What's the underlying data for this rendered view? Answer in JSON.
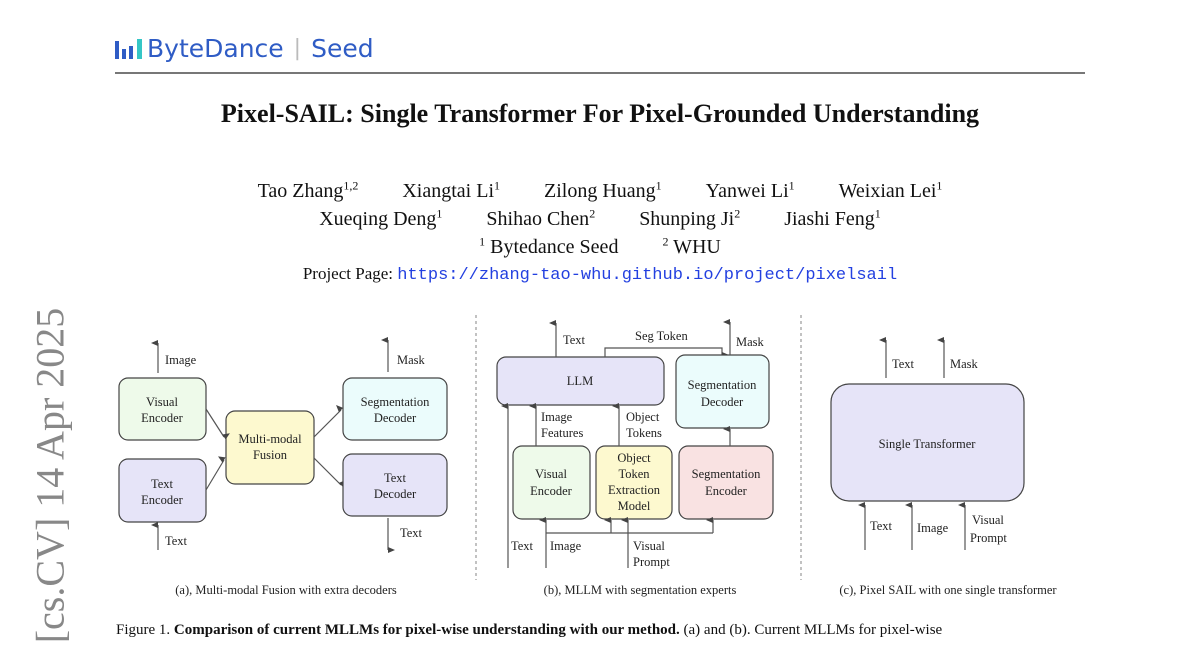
{
  "logo": {
    "brand": "ByteDance",
    "product": "Seed",
    "color": "#2f5cc5"
  },
  "title": "Pixel-SAIL: Single Transformer For Pixel-Grounded Understanding",
  "authors_line1": [
    {
      "name": "Tao Zhang",
      "aff": "1,2"
    },
    {
      "name": "Xiangtai Li",
      "aff": "1"
    },
    {
      "name": "Zilong Huang",
      "aff": "1"
    },
    {
      "name": "Yanwei Li",
      "aff": "1"
    },
    {
      "name": "Weixian Lei",
      "aff": "1"
    }
  ],
  "authors_line2": [
    {
      "name": "Xueqing Deng",
      "aff": "1"
    },
    {
      "name": "Shihao Chen",
      "aff": "2"
    },
    {
      "name": "Shunping Ji",
      "aff": "2"
    },
    {
      "name": "Jiashi Feng",
      "aff": "1"
    }
  ],
  "affiliations": [
    {
      "num": "1",
      "name": "Bytedance Seed"
    },
    {
      "num": "2",
      "name": "WHU"
    }
  ],
  "project": {
    "label": "Project Page:",
    "url": "https://zhang-tao-whu.github.io/project/pixelsail"
  },
  "arxiv_stamp": "[cs.CV]  14 Apr 2025",
  "figure": {
    "a": {
      "image": "Image",
      "visual_encoder": [
        "Visual",
        "Encoder"
      ],
      "text_encoder": [
        "Text",
        "Encoder"
      ],
      "fusion": [
        "Multi-modal",
        "Fusion"
      ],
      "seg_decoder": [
        "Segmentation",
        "Decoder"
      ],
      "text_decoder": [
        "Text",
        "Decoder"
      ],
      "mask": "Mask",
      "text_out": "Text",
      "text_in": "Text",
      "caption": "(a), Multi-modal Fusion with extra decoders"
    },
    "b": {
      "llm": "LLM",
      "text_out": "Text",
      "seg_token": "Seg Token",
      "mask": "Mask",
      "seg_decoder": [
        "Segmentation",
        "Decoder"
      ],
      "image_features": [
        "Image",
        "Features"
      ],
      "object_tokens": [
        "Object",
        "Tokens"
      ],
      "visual_encoder": [
        "Visual",
        "Encoder"
      ],
      "otem": [
        "Object",
        "Token",
        "Extraction",
        "Model"
      ],
      "seg_encoder": [
        "Segmentation",
        "Encoder"
      ],
      "text_in": "Text",
      "image_in": "Image",
      "visual_prompt": [
        "Visual",
        "Prompt"
      ],
      "caption": "(b), MLLM with segmentation experts"
    },
    "c": {
      "text_out": "Text",
      "mask": "Mask",
      "box": "Single Transformer",
      "text_in": "Text",
      "image_in": "Image",
      "visual_prompt": [
        "Visual",
        "Prompt"
      ],
      "caption": "(c), Pixel SAIL with one single transformer"
    },
    "colors": {
      "lavender": "#e6e4f8",
      "green": "#eefaea",
      "yellow": "#fdf9cf",
      "cyan": "#ebfcfc",
      "pink": "#f9e2e2"
    }
  },
  "caption": {
    "label": "Figure 1.",
    "bold": "Comparison of current MLLMs for pixel-wise understanding with our method.",
    "rest": "(a) and (b). Current MLLMs for pixel-wise"
  }
}
